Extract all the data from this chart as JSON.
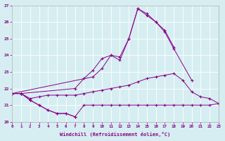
{
  "xlabel": "Windchill (Refroidissement éolien,°C)",
  "bg_color": "#d6eef2",
  "grid_color": "#b8d8e0",
  "line_color": "#880088",
  "marker": "+",
  "x_values": [
    0,
    1,
    2,
    3,
    4,
    5,
    6,
    7,
    8,
    9,
    10,
    11,
    12,
    13,
    14,
    15,
    16,
    17,
    18,
    19,
    20,
    21,
    22,
    23
  ],
  "ylim": [
    20,
    27
  ],
  "xlim": [
    0,
    23
  ],
  "series": [
    [
      21.7,
      21.7,
      21.3,
      21.0,
      20.7,
      20.5,
      20.5,
      20.3,
      null,
      null,
      null,
      null,
      null,
      null,
      null,
      null,
      null,
      null,
      null,
      null,
      null,
      null,
      null,
      null
    ],
    [
      21.7,
      21.7,
      21.4,
      21.5,
      21.6,
      21.6,
      21.6,
      21.6,
      21.7,
      21.8,
      21.9,
      22.0,
      22.1,
      22.2,
      22.4,
      22.6,
      22.7,
      22.8,
      22.9,
      22.5,
      21.8,
      21.5,
      21.4,
      21.1
    ],
    [
      21.7,
      21.7,
      21.3,
      21.0,
      20.7,
      20.5,
      20.5,
      20.3,
      21.0,
      21.0,
      21.0,
      21.0,
      21.0,
      21.0,
      21.0,
      21.0,
      21.0,
      21.0,
      21.0,
      21.0,
      21.0,
      21.0,
      21.0,
      21.1
    ],
    [
      21.7,
      21.7,
      null,
      null,
      null,
      null,
      null,
      22.0,
      22.6,
      23.1,
      23.8,
      24.0,
      23.9,
      25.0,
      26.8,
      26.5,
      26.0,
      25.5,
      24.5,
      null,
      null,
      null,
      null,
      null
    ]
  ],
  "series2_x": [
    0,
    9,
    10,
    11,
    12,
    13,
    14,
    15,
    16,
    17,
    18,
    20
  ],
  "series2_y": [
    21.7,
    22.7,
    23.2,
    24.0,
    23.7,
    25.0,
    26.8,
    26.4,
    26.0,
    25.4,
    24.4,
    22.5
  ]
}
